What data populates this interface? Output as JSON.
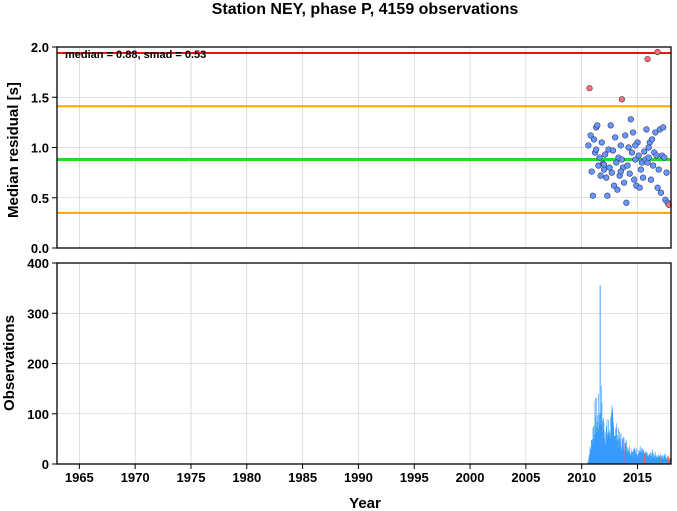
{
  "title": "Station NEY, phase P, 4159 observations",
  "top_panel": {
    "ylabel": "Median residual [s]",
    "annotation": "median = 0.88, smad = 0.53",
    "y_ticks": [
      "0.0",
      "0.5",
      "1.0",
      "1.5",
      "2.0"
    ]
  },
  "bottom_panel": {
    "ylabel": "Observations",
    "y_ticks": [
      "0",
      "100",
      "200",
      "300",
      "400"
    ]
  },
  "xlabel": "Year",
  "x_ticks": [
    "1965",
    "1970",
    "1975",
    "1980",
    "1985",
    "1990",
    "1995",
    "2000",
    "2005",
    "2010",
    "2015"
  ],
  "chart_data": [
    {
      "type": "scatter",
      "ylabel": "Median residual [s]",
      "xlim": [
        1963,
        2018
      ],
      "ylim": [
        0,
        2.0
      ],
      "grid": true,
      "reference_lines": [
        {
          "value": 1.94,
          "color": "#ee1111"
        },
        {
          "value": 1.41,
          "color": "#ffa500"
        },
        {
          "value": 0.88,
          "color": "#22dd22"
        },
        {
          "value": 0.35,
          "color": "#ffa500"
        }
      ],
      "series": [
        {
          "color": "#6699ff",
          "points": [
            [
              2010.6,
              1.02
            ],
            [
              2010.8,
              1.12
            ],
            [
              2010.9,
              0.76
            ],
            [
              2011.0,
              0.52
            ],
            [
              2011.1,
              1.08
            ],
            [
              2011.2,
              0.95
            ],
            [
              2011.3,
              1.2
            ],
            [
              2011.4,
              1.22
            ],
            [
              2011.5,
              0.82
            ],
            [
              2011.6,
              0.9
            ],
            [
              2011.7,
              0.72
            ],
            [
              2011.8,
              1.05
            ],
            [
              2011.9,
              0.84
            ],
            [
              2012.0,
              0.78
            ],
            [
              2012.1,
              0.93
            ],
            [
              2012.2,
              0.7
            ],
            [
              2012.3,
              0.52
            ],
            [
              2012.4,
              0.98
            ],
            [
              2012.5,
              0.8
            ],
            [
              2012.6,
              1.22
            ],
            [
              2012.7,
              0.75
            ],
            [
              2012.8,
              0.97
            ],
            [
              2012.9,
              0.62
            ],
            [
              2013.0,
              1.1
            ],
            [
              2013.1,
              0.85
            ],
            [
              2013.2,
              0.58
            ],
            [
              2013.3,
              0.9
            ],
            [
              2013.4,
              0.72
            ],
            [
              2013.5,
              1.02
            ],
            [
              2013.6,
              0.88
            ],
            [
              2013.7,
              0.8
            ],
            [
              2013.8,
              0.65
            ],
            [
              2013.9,
              1.12
            ],
            [
              2014.0,
              0.45
            ],
            [
              2014.1,
              0.82
            ],
            [
              2014.2,
              1.0
            ],
            [
              2014.3,
              0.74
            ],
            [
              2014.4,
              1.28
            ],
            [
              2014.5,
              0.95
            ],
            [
              2014.6,
              1.15
            ],
            [
              2014.7,
              0.68
            ],
            [
              2014.8,
              0.88
            ],
            [
              2014.9,
              0.62
            ],
            [
              2015.0,
              1.05
            ],
            [
              2015.1,
              0.92
            ],
            [
              2015.2,
              0.6
            ],
            [
              2015.3,
              0.78
            ],
            [
              2015.4,
              0.85
            ],
            [
              2015.5,
              0.7
            ],
            [
              2015.6,
              0.96
            ],
            [
              2015.7,
              0.88
            ],
            [
              2015.8,
              1.18
            ],
            [
              2015.9,
              0.85
            ],
            [
              2016.0,
              0.9
            ],
            [
              2016.1,
              1.05
            ],
            [
              2016.2,
              0.68
            ],
            [
              2016.3,
              1.08
            ],
            [
              2016.4,
              0.82
            ],
            [
              2016.5,
              0.95
            ],
            [
              2016.6,
              1.15
            ],
            [
              2016.7,
              0.92
            ],
            [
              2016.8,
              0.6
            ],
            [
              2016.9,
              0.78
            ],
            [
              2017.0,
              1.18
            ],
            [
              2017.1,
              0.55
            ],
            [
              2017.2,
              0.92
            ],
            [
              2017.3,
              1.2
            ],
            [
              2017.4,
              0.9
            ],
            [
              2017.5,
              0.48
            ],
            [
              2017.6,
              0.75
            ],
            [
              2011.3,
              0.98
            ],
            [
              2012.0,
              0.83
            ],
            [
              2013.5,
              0.76
            ],
            [
              2014.8,
              1.02
            ],
            [
              2016.0,
              1.0
            ],
            [
              2017.7,
              0.45
            ]
          ]
        },
        {
          "color": "#ff7070",
          "points": [
            [
              2010.7,
              1.59
            ],
            [
              2013.6,
              1.48
            ],
            [
              2015.9,
              1.88
            ],
            [
              2016.8,
              1.95
            ],
            [
              2017.8,
              0.43
            ]
          ]
        }
      ]
    },
    {
      "type": "bar",
      "ylabel": "Observations",
      "xlabel": "Year",
      "xlim": [
        1963,
        2018
      ],
      "ylim": [
        0,
        400
      ],
      "grid": true,
      "color": "#3399ff",
      "highlight_color": "#ff5555",
      "bin_start": 2010.5,
      "bin_width": 0.03,
      "peaks": [
        [
          2010.5,
          0
        ],
        [
          2010.7,
          30
        ],
        [
          2010.9,
          55
        ],
        [
          2011.0,
          80
        ],
        [
          2011.1,
          100
        ],
        [
          2011.25,
          120
        ],
        [
          2011.35,
          95
        ],
        [
          2011.45,
          110
        ],
        [
          2011.55,
          130
        ],
        [
          2011.62,
          355
        ],
        [
          2011.7,
          150
        ],
        [
          2011.8,
          105
        ],
        [
          2012.0,
          85
        ],
        [
          2012.3,
          75
        ],
        [
          2012.5,
          90
        ],
        [
          2012.7,
          100
        ],
        [
          2012.9,
          80
        ],
        [
          2013.1,
          70
        ],
        [
          2013.3,
          60
        ],
        [
          2013.5,
          55
        ],
        [
          2013.7,
          50
        ],
        [
          2013.9,
          45
        ],
        [
          2014.1,
          40
        ],
        [
          2014.3,
          35
        ],
        [
          2014.6,
          30
        ],
        [
          2014.9,
          28
        ],
        [
          2015.2,
          32
        ],
        [
          2015.5,
          25
        ],
        [
          2015.8,
          20
        ],
        [
          2016.0,
          18
        ],
        [
          2016.3,
          25
        ],
        [
          2016.6,
          20
        ],
        [
          2016.9,
          15
        ],
        [
          2017.2,
          22
        ],
        [
          2017.5,
          18
        ],
        [
          2017.8,
          15
        ],
        [
          2018.0,
          10
        ]
      ],
      "highlight_years": [
        2013.85,
        2015.6,
        2016.95,
        2017.7
      ]
    }
  ]
}
